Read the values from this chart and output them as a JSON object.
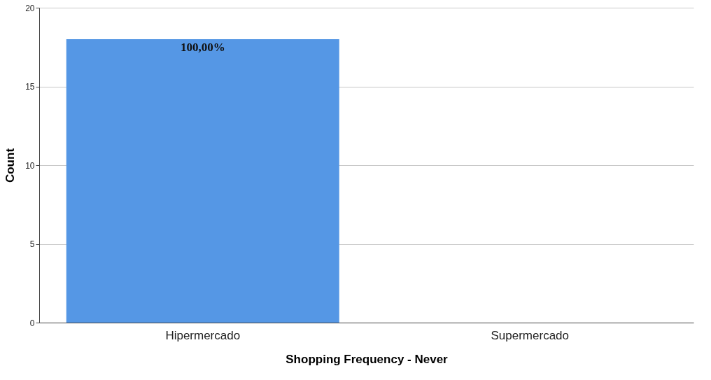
{
  "chart_data": {
    "type": "bar",
    "xlabel": "Shopping Frequency - Never",
    "ylabel": "Count",
    "categories": [
      "Hipermercado",
      "Supermercado"
    ],
    "values": [
      18,
      0
    ],
    "color": "#5597e5",
    "annotations": [
      {
        "text": "100,00%",
        "x": "Hipermercado",
        "y": 18
      }
    ],
    "ylim": [
      0,
      20
    ],
    "yticks": [
      0,
      5,
      10,
      15,
      20
    ],
    "grid": "y"
  }
}
